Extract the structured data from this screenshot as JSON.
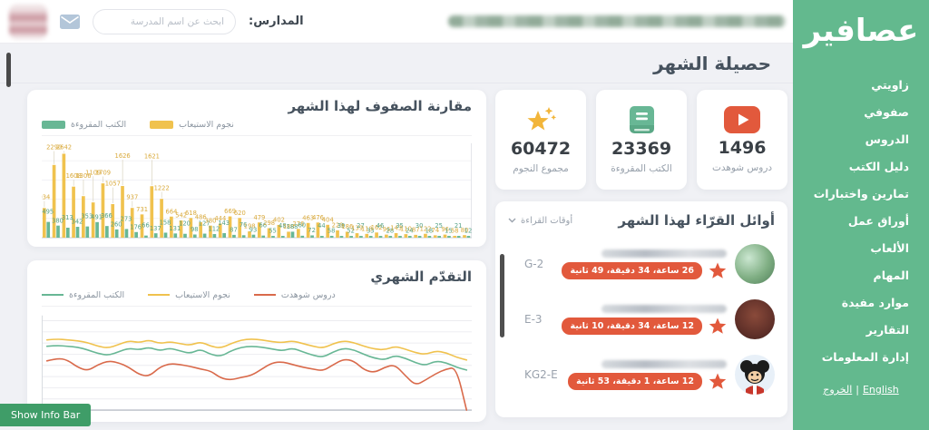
{
  "topbar": {
    "schools_label": "المدارس:",
    "search_placeholder": "ابحث عن اسم المدرسة"
  },
  "sidebar": {
    "logo": "عصافير",
    "items": [
      {
        "id": "my-corner",
        "label": "زاويتي"
      },
      {
        "id": "my-classes",
        "label": "صفوفي"
      },
      {
        "id": "lessons",
        "label": "الدروس"
      },
      {
        "id": "books-guide",
        "label": "دليل الكتب"
      },
      {
        "id": "exercises-tests",
        "label": "تمارين واختبارات"
      },
      {
        "id": "worksheets",
        "label": "أوراق عمل"
      },
      {
        "id": "games",
        "label": "الألعاب"
      },
      {
        "id": "tasks",
        "label": "المهام"
      },
      {
        "id": "useful-resources",
        "label": "موارد مفيدة"
      },
      {
        "id": "reports",
        "label": "التقارير"
      },
      {
        "id": "info-management",
        "label": "إدارة المعلومات"
      }
    ],
    "footer": {
      "english": "English",
      "separator": "|",
      "logout": "الخروج"
    }
  },
  "page": {
    "title": "حصيلة الشهر",
    "show_info_bar": "Show Info Bar"
  },
  "stats": [
    {
      "icon": "play-icon",
      "value": "1496",
      "label": "دروس شوهدت"
    },
    {
      "icon": "book-icon",
      "value": "23369",
      "label": "الكتب المقروءة"
    },
    {
      "icon": "star-icon",
      "value": "60472",
      "label": "مجموع النجوم"
    }
  ],
  "readers": {
    "title": "أوائل القرّاء لهذا الشهر",
    "filter_label": "أوقات القراءة",
    "rows": [
      {
        "class_label": "G-2",
        "reading_time": "26 ساعة، 34 دقيقة، 49 ثانية"
      },
      {
        "class_label": "E-3",
        "reading_time": "12 ساعة، 34 دقيقة، 10 ثانية"
      },
      {
        "class_label": "KG2-E",
        "reading_time": "12 ساعة، 1 دقيقة، 53 ثانية"
      }
    ]
  },
  "colors": {
    "sidebar_green": "#63b98e",
    "button_green": "#3f9d68",
    "accent_red": "#e2593c",
    "series_yellow": "#f0c24e",
    "series_teal": "#68b795",
    "series_orange": "#d96a4b",
    "heading": "#46525e",
    "muted": "#97a0ab",
    "background": "#f0f1f5"
  },
  "chart_data": [
    {
      "type": "bar",
      "title": "مقارنة الصفوف لهذا الشهر",
      "legend_position": "top-left",
      "grid": true,
      "ylim": [
        0,
        2700
      ],
      "series": [
        {
          "name": "نجوم الاستيعاب",
          "color": "#f0c24e",
          "values": [
            934,
            2290,
            2642,
            1608,
            1306,
            1109,
            1709,
            1057,
            1626,
            937,
            731,
            1621,
            1222,
            664,
            542,
            618,
            486,
            380,
            444,
            669,
            620,
            198,
            479,
            298,
            402,
            188,
            276,
            463,
            476,
            404,
            229,
            186,
            139,
            118,
            162,
            96,
            143,
            110,
            87,
            122,
            74,
            96,
            58,
            80
          ]
        },
        {
          "name": "الكتب المقروءة",
          "color": "#68b795",
          "values": [
            495,
            380,
            313,
            342,
            353,
            491,
            366,
            260,
            273,
            176,
            66,
            137,
            158,
            131,
            120,
            98,
            127,
            112,
            143,
            87,
            76,
            93,
            66,
            55,
            48,
            188,
            60,
            72,
            44,
            58,
            39,
            52,
            27,
            33,
            46,
            28,
            35,
            24,
            30,
            18,
            25,
            15,
            21,
            12
          ]
        }
      ]
    },
    {
      "type": "line",
      "title": "التقدّم الشهري",
      "legend_position": "top-left",
      "grid": true,
      "ylim": [
        0,
        100
      ],
      "series": [
        {
          "name": "دروس شوهدت",
          "color": "#d96a4b",
          "values": [
            54,
            57,
            55,
            47,
            43,
            50,
            54,
            52,
            47,
            39,
            37,
            47,
            51,
            50,
            48,
            45,
            43,
            35,
            33,
            36,
            38,
            45,
            52,
            53,
            50,
            47,
            45,
            43,
            50,
            56,
            54,
            44,
            41,
            47,
            50,
            38,
            27,
            33,
            40,
            45,
            47,
            0
          ]
        },
        {
          "name": "نجوم الاستيعاب",
          "color": "#f0c24e",
          "values": [
            77,
            78,
            77,
            76,
            74,
            70,
            68,
            72,
            76,
            74,
            77,
            73,
            75,
            73,
            71,
            75,
            70,
            68,
            73,
            77,
            78,
            77,
            75,
            74,
            76,
            73,
            70,
            68,
            73,
            76,
            74,
            70,
            67,
            66,
            70,
            67,
            63,
            61,
            65,
            63,
            58,
            55
          ]
        },
        {
          "name": "الكتب المقروءة",
          "color": "#68b795",
          "values": [
            70,
            71,
            70,
            69,
            66,
            62,
            60,
            64,
            68,
            66,
            69,
            65,
            68,
            65,
            62,
            67,
            61,
            59,
            65,
            69,
            70,
            69,
            67,
            65,
            68,
            64,
            60,
            58,
            64,
            68,
            66,
            61,
            57,
            55,
            60,
            57,
            52,
            49,
            54,
            52,
            47,
            44
          ]
        }
      ]
    }
  ]
}
